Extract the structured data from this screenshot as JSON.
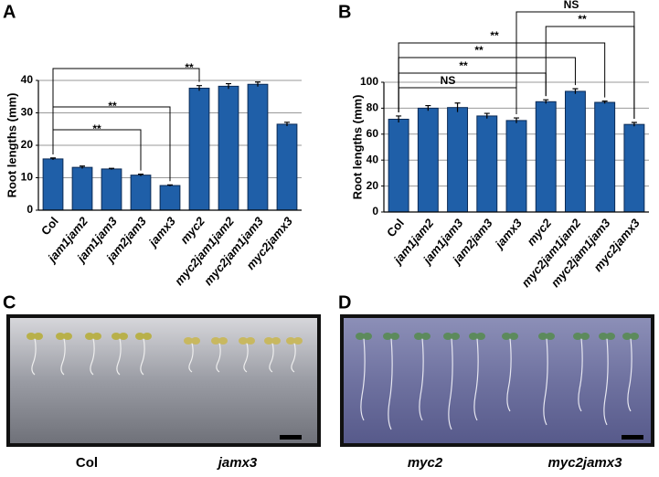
{
  "chart_data": [
    {
      "type": "bar",
      "panel": "A",
      "ylabel": "Root lengths (mm)",
      "categories": [
        "Col",
        "jam1jam2",
        "jam1jam3",
        "jam2jam3",
        "jamx3",
        "myc2",
        "myc2jam1jam2",
        "myc2jam1jam3",
        "myc2jamx3"
      ],
      "values": [
        15.8,
        13.2,
        12.7,
        10.8,
        7.6,
        37.6,
        38.2,
        38.8,
        26.5
      ],
      "errors": [
        0.3,
        0.4,
        0.2,
        0.3,
        0.2,
        0.8,
        0.8,
        0.7,
        0.6
      ],
      "color": "#1f5fa8",
      "ylim": [
        0,
        40
      ],
      "yticks": [
        0,
        10,
        20,
        30,
        40
      ],
      "grid": true,
      "annotations": [
        "**",
        "**",
        "**"
      ]
    },
    {
      "type": "bar",
      "panel": "B",
      "ylabel": "Root lengths (mm)",
      "categories": [
        "Col",
        "jam1jam2",
        "jam1jam3",
        "jam2jam3",
        "jamx3",
        "myc2",
        "myc2jam1jam2",
        "myc2jam1jam3",
        "myc2jamx3"
      ],
      "values": [
        71.5,
        80,
        80.5,
        74,
        70.5,
        85,
        93,
        84.5,
        67.5
      ],
      "errors": [
        2.5,
        2,
        3.5,
        2,
        2,
        1.5,
        2,
        1,
        1.5
      ],
      "color": "#1f5fa8",
      "ylim": [
        0,
        100
      ],
      "yticks": [
        0,
        20,
        40,
        60,
        80,
        100
      ],
      "grid": true,
      "annotations": [
        "NS",
        "**",
        "**",
        "**",
        "**",
        "NS"
      ]
    }
  ],
  "photos": [
    {
      "panel": "C",
      "captions": [
        "Col",
        "jamx3"
      ]
    },
    {
      "panel": "D",
      "captions": [
        "myc2",
        "myc2jamx3"
      ]
    }
  ]
}
